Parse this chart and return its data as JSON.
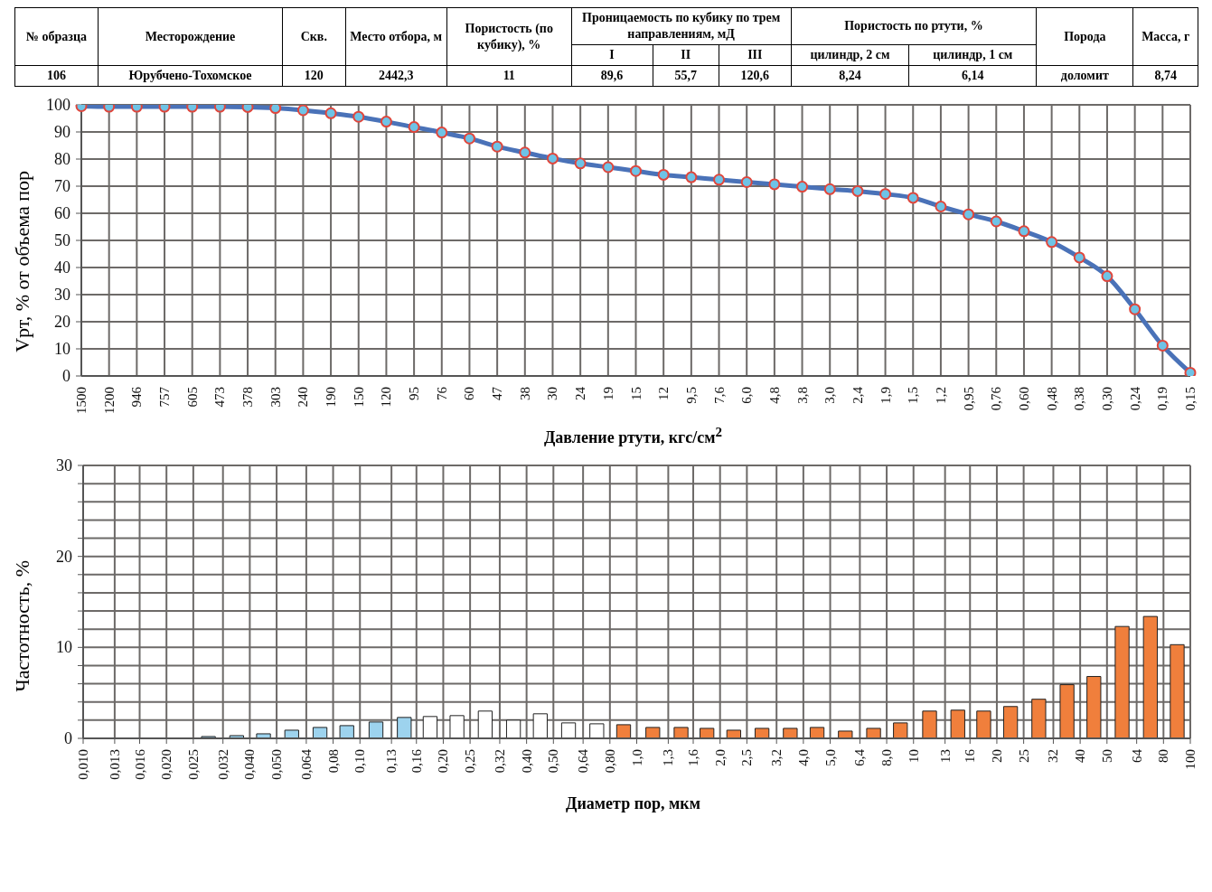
{
  "chart_data": [
    {
      "type": "other",
      "annotations": [
        "№ образца",
        "Месторождение",
        "Скв.",
        "Место отбора, м",
        "Пористость (по кубику), %",
        "Проницаемость по кубику по трем направлениям, мД",
        "Пористость по ртути, %",
        "Порода",
        "Масса, г",
        "I",
        "II",
        "III",
        "цилиндр, 2 см",
        "цилиндр, 1 см",
        "106",
        "Юрубчено-Тохомское",
        "120",
        "2442,3",
        "11",
        "89,6",
        "55,7",
        "120,6",
        "8,24",
        "6,14",
        "доломит",
        "8,74"
      ]
    },
    {
      "type": "line",
      "xlabel": "Давление ртути, кгс/см$^{2}$",
      "ylabel": "Vрт, % от объема пор",
      "categories": [
        "1500",
        "1200",
        "946",
        "757",
        "605",
        "473",
        "378",
        "303",
        "240",
        "190",
        "150",
        "120",
        "95",
        "76",
        "60",
        "47",
        "38",
        "30",
        "24",
        "19",
        "15",
        "12",
        "9,5",
        "7,6",
        "6,0",
        "4,8",
        "3,8",
        "3,0",
        "2,4",
        "1,9",
        "1,5",
        "1,2",
        "0,95",
        "0,76",
        "0,60",
        "0,48",
        "0,38",
        "0,30",
        "0,24",
        "0,19",
        "0,15"
      ],
      "series": [
        {
          "color": "#4a72b8",
          "values": [
            99.5,
            99.3,
            99.3,
            99.3,
            99.3,
            99.3,
            99.2,
            98.8,
            98,
            96.9,
            95.6,
            93.8,
            91.8,
            89.8,
            87.6,
            84.6,
            82.4,
            80.2,
            78.4,
            77,
            75.6,
            74.2,
            73.3,
            72.4,
            71.5,
            70.7,
            69.8,
            68.9,
            68.2,
            67.1,
            65.7,
            62.5,
            59.6,
            57,
            53.4,
            49.4,
            43.7,
            36.8,
            24.6,
            11.2,
            1.2
          ]
        }
      ],
      "ylim": [
        0,
        100
      ],
      "yticks": [
        0,
        10,
        20,
        30,
        40,
        50,
        60,
        70,
        80,
        90,
        100
      ],
      "grid": true,
      "marker": "circle",
      "line_style": "solid"
    },
    {
      "type": "histogram",
      "xlabel": "Диаметр пор, мкм",
      "ylabel": "Частотность, %",
      "bins": [
        0.025,
        0.032,
        0.04,
        0.05,
        0.064,
        0.08,
        0.1,
        0.13,
        0.16,
        0.2,
        0.25,
        0.32,
        0.4,
        0.5,
        0.64,
        0.8,
        1,
        1.3,
        1.6,
        2,
        2.5,
        3.2,
        4,
        5,
        6.4,
        8,
        10,
        13,
        16,
        20,
        25,
        32,
        40,
        50,
        64,
        80,
        100
      ],
      "values": [
        0.2,
        0.3,
        0.5,
        0.9,
        1.2,
        1.4,
        1.8,
        2.3,
        2.4,
        2.5,
        3,
        2,
        2.7,
        1.7,
        1.6,
        1.5,
        1.2,
        1.2,
        1.1,
        0.9,
        1.1,
        1.1,
        1.2,
        0.8,
        1.1,
        1.7,
        3,
        3.1,
        3,
        3.5,
        4.3,
        5.9,
        6.8,
        12.3,
        13.4,
        10.3
      ],
      "colors": [
        "#9dd3ee",
        "#9dd3ee",
        "#9dd3ee",
        "#9dd3ee",
        "#9dd3ee",
        "#9dd3ee",
        "#9dd3ee",
        "#9dd3ee",
        "#ffffff",
        "#ffffff",
        "#ffffff",
        "#ffffff",
        "#ffffff",
        "#ffffff",
        "#ffffff",
        "#f07f3c",
        "#f07f3c",
        "#f07f3c",
        "#f07f3c",
        "#f07f3c",
        "#f07f3c",
        "#f07f3c",
        "#f07f3c",
        "#f07f3c",
        "#f07f3c",
        "#f07f3c",
        "#f07f3c",
        "#f07f3c",
        "#f07f3c",
        "#f07f3c",
        "#f07f3c",
        "#f07f3c",
        "#f07f3c",
        "#f07f3c",
        "#f07f3c",
        "#f07f3c"
      ],
      "xticks": [
        {
          "value": 0.01,
          "label": "0,010"
        },
        {
          "value": 0.013,
          "label": "0,013"
        },
        {
          "value": 0.016,
          "label": "0,016"
        },
        {
          "value": 0.02,
          "label": "0,020"
        },
        {
          "value": 0.025,
          "label": "0,025"
        },
        {
          "value": 0.032,
          "label": "0,032"
        },
        {
          "value": 0.04,
          "label": "0,040"
        },
        {
          "value": 0.05,
          "label": "0,050"
        },
        {
          "value": 0.064,
          "label": "0,064"
        },
        {
          "value": 0.08,
          "label": "0,08"
        },
        {
          "value": 0.1,
          "label": "0,10"
        },
        {
          "value": 0.13,
          "label": "0,13"
        },
        {
          "value": 0.16,
          "label": "0,16"
        },
        {
          "value": 0.2,
          "label": "0,20"
        },
        {
          "value": 0.25,
          "label": "0,25"
        },
        {
          "value": 0.32,
          "label": "0,32"
        },
        {
          "value": 0.4,
          "label": "0,40"
        },
        {
          "value": 0.5,
          "label": "0,50"
        },
        {
          "value": 0.64,
          "label": "0,64"
        },
        {
          "value": 0.8,
          "label": "0,80"
        },
        {
          "value": 1,
          "label": "1,0"
        },
        {
          "value": 1.3,
          "label": "1,3"
        },
        {
          "value": 1.6,
          "label": "1,6"
        },
        {
          "value": 2,
          "label": "2,0"
        },
        {
          "value": 2.5,
          "label": "2,5"
        },
        {
          "value": 3.2,
          "label": "3,2"
        },
        {
          "value": 4,
          "label": "4,0"
        },
        {
          "value": 5,
          "label": "5,0"
        },
        {
          "value": 6.4,
          "label": "6,4"
        },
        {
          "value": 8,
          "label": "8,0"
        },
        {
          "value": 10,
          "label": "10"
        },
        {
          "value": 13,
          "label": "13"
        },
        {
          "value": 16,
          "label": "16"
        },
        {
          "value": 20,
          "label": "20"
        },
        {
          "value": 25,
          "label": "25"
        },
        {
          "value": 32,
          "label": "32"
        },
        {
          "value": 40,
          "label": "40"
        },
        {
          "value": 50,
          "label": "50"
        },
        {
          "value": 64,
          "label": "64"
        },
        {
          "value": 80,
          "label": "80"
        },
        {
          "value": 100,
          "label": "100"
        }
      ],
      "xlim": [
        0.01,
        100
      ],
      "log": "x",
      "ylim": [
        0,
        30
      ],
      "yticks": [
        0,
        {
          "value": 2,
          "label": null
        },
        {
          "value": 4,
          "label": null
        },
        {
          "value": 6,
          "label": null
        },
        {
          "value": 8,
          "label": null
        },
        10,
        {
          "value": 12,
          "label": null
        },
        {
          "value": 14,
          "label": null
        },
        {
          "value": 16,
          "label": null
        },
        {
          "value": 18,
          "label": null
        },
        20,
        {
          "value": 22,
          "label": null
        },
        {
          "value": 24,
          "label": null
        },
        {
          "value": 26,
          "label": null
        },
        {
          "value": 28,
          "label": null
        },
        30
      ],
      "grid": true
    }
  ]
}
